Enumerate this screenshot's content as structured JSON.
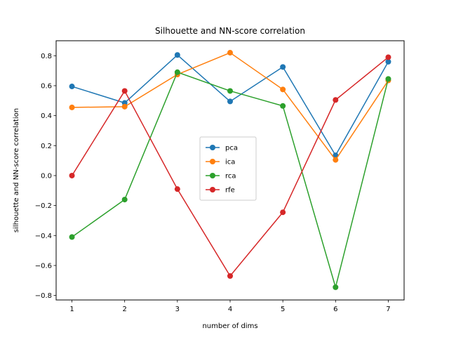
{
  "chart_data": {
    "type": "line",
    "title": "Silhouette and NN-score correlation",
    "xlabel": "number of dims",
    "ylabel": "silhouette and NN-score correlation",
    "x": [
      1,
      2,
      3,
      4,
      5,
      6,
      7
    ],
    "xticks": [
      "1",
      "2",
      "3",
      "4",
      "5",
      "6",
      "7"
    ],
    "yticks": [
      "−0.8",
      "−0.6",
      "−0.4",
      "−0.2",
      "0.0",
      "0.2",
      "0.4",
      "0.6",
      "0.8"
    ],
    "ytick_values": [
      -0.8,
      -0.6,
      -0.4,
      -0.2,
      0.0,
      0.2,
      0.4,
      0.6,
      0.8
    ],
    "xlim": [
      0.7,
      7.3
    ],
    "ylim": [
      -0.83,
      0.9
    ],
    "grid": false,
    "legend_position": "center",
    "series": [
      {
        "name": "pca",
        "color": "#1f77b4",
        "values": [
          0.595,
          0.485,
          0.805,
          0.495,
          0.725,
          0.135,
          0.76
        ]
      },
      {
        "name": "ica",
        "color": "#ff7f0e",
        "values": [
          0.455,
          0.46,
          0.675,
          0.82,
          0.575,
          0.105,
          0.635
        ]
      },
      {
        "name": "rca",
        "color": "#2ca02c",
        "values": [
          -0.41,
          -0.16,
          0.69,
          0.565,
          0.465,
          -0.745,
          0.645
        ]
      },
      {
        "name": "rfe",
        "color": "#d62728",
        "values": [
          0.0,
          0.565,
          -0.09,
          -0.67,
          -0.245,
          0.505,
          0.79
        ]
      }
    ]
  }
}
